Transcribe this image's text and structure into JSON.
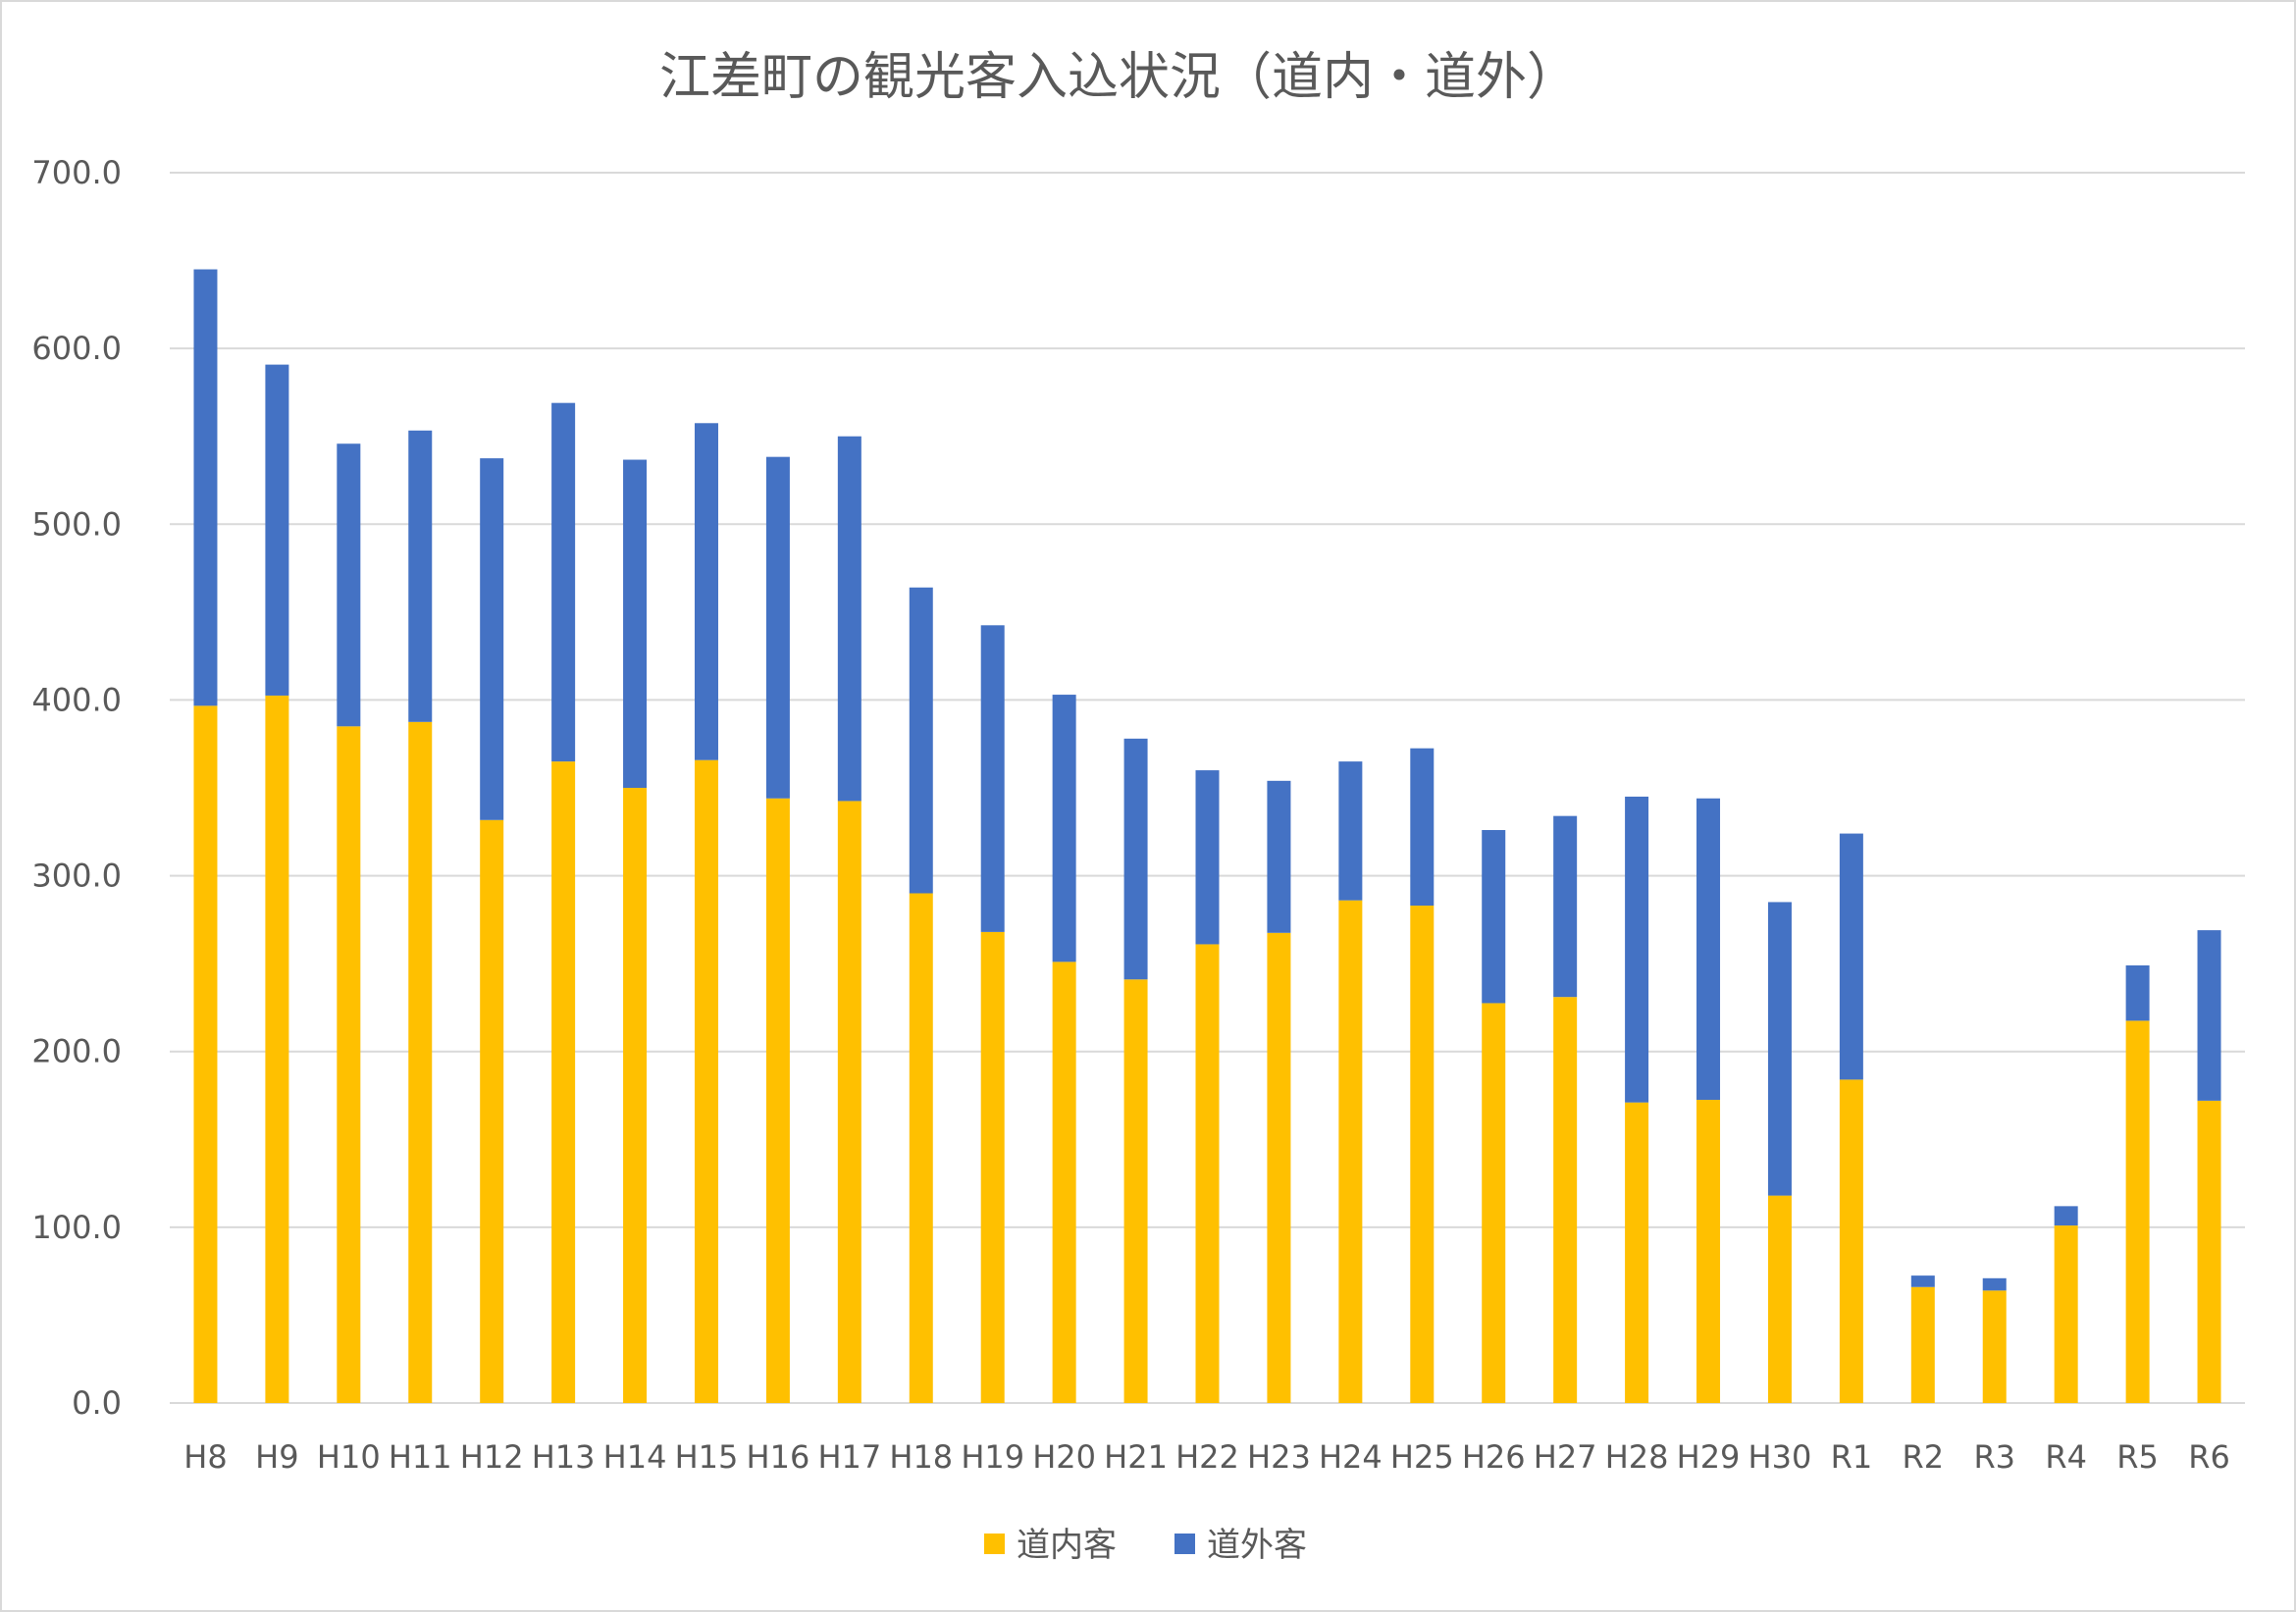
{
  "chart_data": {
    "type": "bar",
    "stacked": true,
    "title": "江差町の観光客入込状況（道内・道外）",
    "xlabel": "",
    "ylabel": "",
    "ylim": [
      0,
      700
    ],
    "yticks": [
      "0.0",
      "100.0",
      "200.0",
      "300.0",
      "400.0",
      "500.0",
      "600.0",
      "700.0"
    ],
    "grid": true,
    "legend_position": "bottom",
    "categories": [
      "H8",
      "H9",
      "H10",
      "H11",
      "H12",
      "H13",
      "H14",
      "H15",
      "H16",
      "H17",
      "H18",
      "H19",
      "H20",
      "H21",
      "H22",
      "H23",
      "H24",
      "H25",
      "H26",
      "H27",
      "H28",
      "H29",
      "H30",
      "R1",
      "R2",
      "R3",
      "R4",
      "R5",
      "R6"
    ],
    "series": [
      {
        "name": "道内客",
        "color": "#FFC000",
        "values": [
          396.7,
          402.5,
          385.0,
          387.5,
          331.7,
          365.0,
          350.0,
          365.8,
          344.0,
          342.5,
          290.0,
          268.0,
          251.0,
          241.0,
          261.0,
          267.5,
          286.0,
          283.0,
          227.5,
          231.0,
          171.0,
          172.5,
          118.0,
          184.0,
          66.0,
          64.0,
          101.0,
          217.5,
          172.0
        ]
      },
      {
        "name": "道外客",
        "color": "#4472C4",
        "values": [
          248.3,
          188.3,
          160.8,
          165.8,
          205.8,
          204.0,
          186.7,
          191.7,
          194.3,
          207.5,
          174.0,
          174.5,
          152.0,
          137.0,
          99.0,
          86.5,
          79.0,
          89.5,
          98.5,
          103.0,
          174.0,
          171.5,
          167.0,
          140.0,
          6.5,
          7.0,
          11.0,
          31.5,
          97.0
        ]
      }
    ]
  }
}
